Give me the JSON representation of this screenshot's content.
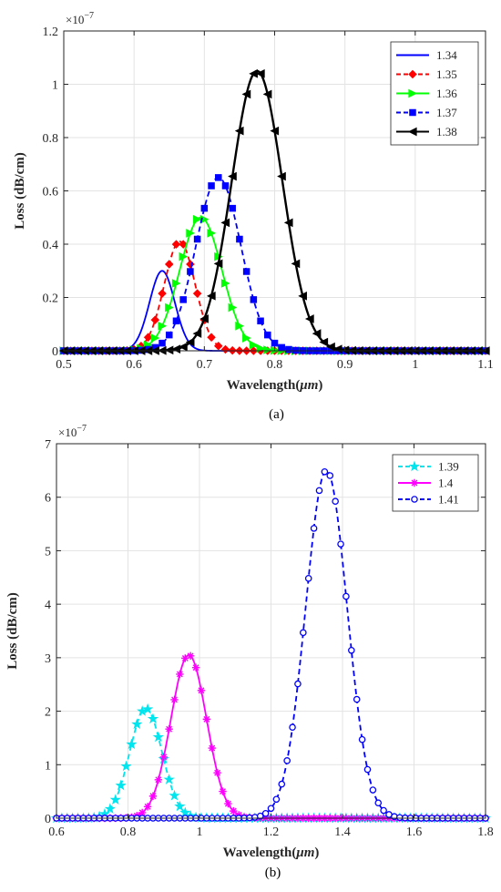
{
  "chart_data": [
    {
      "id": "a",
      "type": "line",
      "caption": "(a)",
      "xlabel": "Wavelength(",
      "xlabel_unit": "μm",
      "xlabel_close": ")",
      "ylabel": "Loss (dB/cm)",
      "exponent_base": "×10",
      "exponent_power": "−7",
      "xlim": [
        0.5,
        1.1
      ],
      "ylim": [
        0,
        1.2
      ],
      "xticks": [
        "0.5",
        "0.6",
        "0.7",
        "0.8",
        "0.9",
        "1",
        "1.1"
      ],
      "yticks": [
        "0",
        "0.2",
        "0.4",
        "0.6",
        "0.8",
        "1",
        "1.2"
      ],
      "grid": true,
      "legend_position": "top-right",
      "series": [
        {
          "name": "1.34",
          "peak_x": 0.64,
          "peak_y": 0.3,
          "width": 0.018,
          "color": "#0000ff",
          "dash": "solid",
          "marker": "none"
        },
        {
          "name": "1.35",
          "peak_x": 0.665,
          "peak_y": 0.41,
          "width": 0.022,
          "color": "#ff0000",
          "dash": "dash",
          "marker": "diamond"
        },
        {
          "name": "1.36",
          "peak_x": 0.695,
          "peak_y": 0.5,
          "width": 0.03,
          "color": "#00ff00",
          "dash": "solid",
          "marker": "triangle-right"
        },
        {
          "name": "1.37",
          "peak_x": 0.72,
          "peak_y": 0.65,
          "width": 0.032,
          "color": "#0000ff",
          "dash": "dash",
          "marker": "square"
        },
        {
          "name": "1.38",
          "peak_x": 0.775,
          "peak_y": 1.05,
          "width": 0.036,
          "color": "#000000",
          "dash": "solid",
          "marker": "triangle-left"
        }
      ]
    },
    {
      "id": "b",
      "type": "line",
      "caption": "(b)",
      "xlabel": "Wavelength(",
      "xlabel_unit": "μm",
      "xlabel_close": ")",
      "ylabel": "Loss (dB/cm)",
      "exponent_base": "×10",
      "exponent_power": "−7",
      "xlim": [
        0.6,
        1.8
      ],
      "ylim": [
        0,
        7
      ],
      "xticks": [
        "0.6",
        "0.8",
        "1",
        "1.2",
        "1.4",
        "1.6",
        "1.8"
      ],
      "yticks": [
        "0",
        "1",
        "2",
        "3",
        "4",
        "5",
        "6",
        "7"
      ],
      "grid": true,
      "legend_position": "top-right",
      "series": [
        {
          "name": "1.39",
          "peak_x": 0.85,
          "peak_y": 2.05,
          "width": 0.045,
          "color": "#00e5ee",
          "dash": "dash",
          "marker": "star"
        },
        {
          "name": "1.4",
          "peak_x": 0.97,
          "peak_y": 3.05,
          "width": 0.05,
          "color": "#ff00ff",
          "dash": "solid",
          "marker": "asterisk"
        },
        {
          "name": "1.41",
          "peak_x": 1.355,
          "peak_y": 6.5,
          "width": 0.058,
          "color": "#0000ff",
          "dash": "dash",
          "marker": "circle"
        }
      ]
    }
  ]
}
